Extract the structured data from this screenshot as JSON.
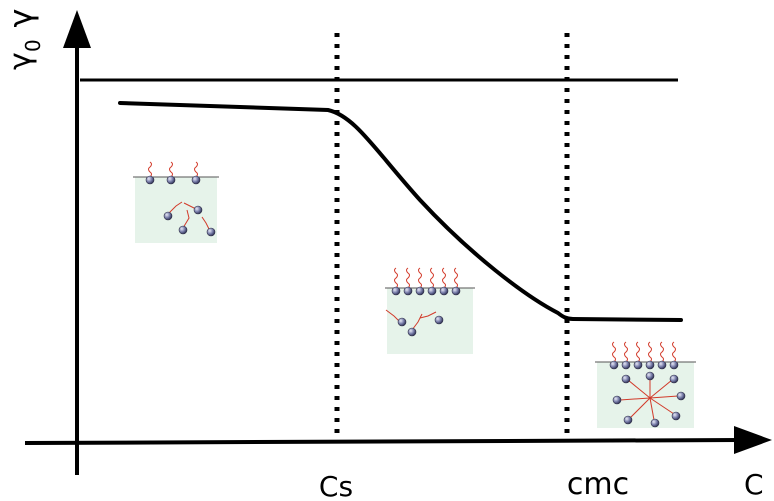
{
  "diagram": {
    "y_axis_label": "γ",
    "y_reference_label": "γ",
    "y_reference_subscript": "0",
    "x_axis_label": "C",
    "x_marker_cs": "Cs",
    "x_marker_cmc": "cmc",
    "colors": {
      "line": "#000000",
      "inset_background": "#e6f3ea",
      "surfactant_head": "#6a6f9a",
      "surfactant_tail": "#d23a2a"
    },
    "insets": [
      {
        "name": "dilute",
        "icon": "monolayer-and-free-monomers-icon"
      },
      {
        "name": "adsorbing",
        "icon": "saturated-monolayer-icon"
      },
      {
        "name": "micellar",
        "icon": "micelle-icon"
      }
    ]
  }
}
